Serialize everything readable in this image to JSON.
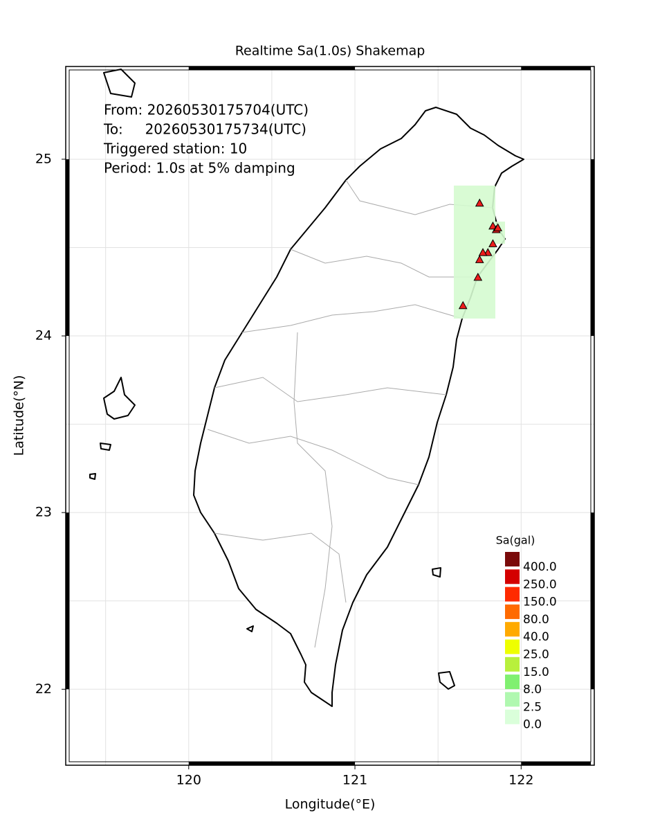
{
  "chart_data": {
    "type": "map",
    "title": "Realtime Sa(1.0s) Shakemap",
    "xlabel": "Longitude(°E)",
    "ylabel": "Latitude(°N)",
    "xlim": [
      119.26,
      122.44
    ],
    "ylim": [
      21.57,
      25.525
    ],
    "xticks": [
      120,
      121,
      122
    ],
    "yticks": [
      22,
      23,
      24,
      25
    ],
    "xgrid": [
      119.5,
      120,
      120.5,
      121,
      121.5,
      122
    ],
    "ygrid": [
      22,
      22.5,
      23,
      23.5,
      24,
      24.5,
      25
    ],
    "annotations": [
      "From: 20260530175704(UTC)",
      "To:     20260530175734(UTC)",
      "Triggered station: 10",
      "Period: 1.0s at 5% damping"
    ],
    "stations": {
      "color": "#ee1c1c",
      "lon": [
        121.75,
        121.83,
        121.85,
        121.86,
        121.83,
        121.8,
        121.77,
        121.75,
        121.74,
        121.65
      ],
      "lat": [
        24.75,
        24.62,
        24.6,
        24.61,
        24.52,
        24.47,
        24.47,
        24.43,
        24.33,
        24.17
      ]
    },
    "legend": {
      "title": "Sa(gal)",
      "labels": [
        "400.0",
        "250.0",
        "150.0",
        "80.0",
        "40.0",
        "25.0",
        "15.0",
        "8.0",
        "2.5",
        "0.0"
      ],
      "colors": [
        "#7a0a0a",
        "#d40000",
        "#ff2a00",
        "#ff6a00",
        "#ffaa00",
        "#eeff00",
        "#b8f03c",
        "#80f070",
        "#b0f8b0",
        "#daffda"
      ]
    }
  }
}
